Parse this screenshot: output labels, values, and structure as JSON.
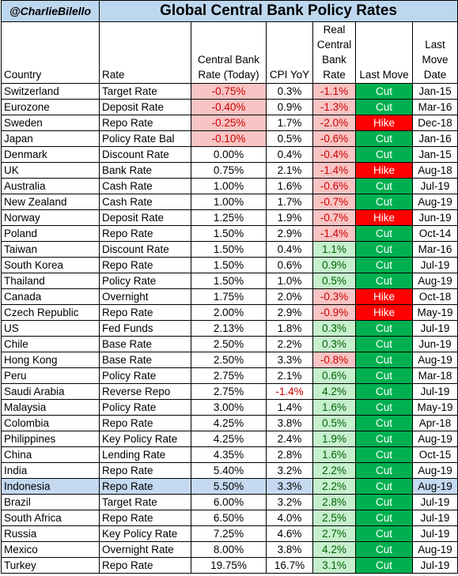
{
  "header": {
    "handle": "@CharlieBilello",
    "title": "Global Central Bank Policy Rates"
  },
  "columns": {
    "country": "Country",
    "rate": "Rate",
    "cb_rate_line1": "Central Bank",
    "cb_rate_line2": "Rate (Today)",
    "cpi": "CPI YoY",
    "real_line1": "Real",
    "real_line2": "Central",
    "real_line3": "Bank",
    "real_line4": "Rate",
    "last_move": "Last Move",
    "date_line1": "Last",
    "date_line2": "Move",
    "date_line3": "Date"
  },
  "rows": [
    {
      "country": "Switzerland",
      "rate": "Target Rate",
      "cb": "-0.75%",
      "cpi": "0.3%",
      "real": "-1.1%",
      "move": "Cut",
      "date": "Jan-15"
    },
    {
      "country": "Eurozone",
      "rate": "Deposit Rate",
      "cb": "-0.40%",
      "cpi": "0.9%",
      "real": "-1.3%",
      "move": "Cut",
      "date": "Mar-16"
    },
    {
      "country": "Sweden",
      "rate": "Repo Rate",
      "cb": "-0.25%",
      "cpi": "1.7%",
      "real": "-2.0%",
      "move": "Hike",
      "date": "Dec-18"
    },
    {
      "country": "Japan",
      "rate": "Policy Rate Bal",
      "cb": "-0.10%",
      "cpi": "0.5%",
      "real": "-0.6%",
      "move": "Cut",
      "date": "Jan-16"
    },
    {
      "country": "Denmark",
      "rate": "Discount Rate",
      "cb": "0.00%",
      "cpi": "0.4%",
      "real": "-0.4%",
      "move": "Cut",
      "date": "Jan-15"
    },
    {
      "country": "UK",
      "rate": "Bank Rate",
      "cb": "0.75%",
      "cpi": "2.1%",
      "real": "-1.4%",
      "move": "Hike",
      "date": "Aug-18"
    },
    {
      "country": "Australia",
      "rate": "Cash Rate",
      "cb": "1.00%",
      "cpi": "1.6%",
      "real": "-0.6%",
      "move": "Cut",
      "date": "Jul-19"
    },
    {
      "country": "New Zealand",
      "rate": "Cash Rate",
      "cb": "1.00%",
      "cpi": "1.7%",
      "real": "-0.7%",
      "move": "Cut",
      "date": "Aug-19"
    },
    {
      "country": "Norway",
      "rate": "Deposit Rate",
      "cb": "1.25%",
      "cpi": "1.9%",
      "real": "-0.7%",
      "move": "Hike",
      "date": "Jun-19"
    },
    {
      "country": "Poland",
      "rate": "Repo Rate",
      "cb": "1.50%",
      "cpi": "2.9%",
      "real": "-1.4%",
      "move": "Cut",
      "date": "Oct-14"
    },
    {
      "country": "Taiwan",
      "rate": "Discount Rate",
      "cb": "1.50%",
      "cpi": "0.4%",
      "real": "1.1%",
      "move": "Cut",
      "date": "Mar-16"
    },
    {
      "country": "South Korea",
      "rate": "Repo Rate",
      "cb": "1.50%",
      "cpi": "0.6%",
      "real": "0.9%",
      "move": "Cut",
      "date": "Jul-19"
    },
    {
      "country": "Thailand",
      "rate": "Policy Rate",
      "cb": "1.50%",
      "cpi": "1.0%",
      "real": "0.5%",
      "move": "Cut",
      "date": "Aug-19"
    },
    {
      "country": "Canada",
      "rate": "Overnight",
      "cb": "1.75%",
      "cpi": "2.0%",
      "real": "-0.3%",
      "move": "Hike",
      "date": "Oct-18"
    },
    {
      "country": "Czech Republic",
      "rate": "Repo Rate",
      "cb": "2.00%",
      "cpi": "2.9%",
      "real": "-0.9%",
      "move": "Hike",
      "date": "May-19"
    },
    {
      "country": "US",
      "rate": "Fed Funds",
      "cb": "2.13%",
      "cpi": "1.8%",
      "real": "0.3%",
      "move": "Cut",
      "date": "Jul-19"
    },
    {
      "country": "Chile",
      "rate": "Base Rate",
      "cb": "2.50%",
      "cpi": "2.2%",
      "real": "0.3%",
      "move": "Cut",
      "date": "Jun-19"
    },
    {
      "country": "Hong Kong",
      "rate": "Base Rate",
      "cb": "2.50%",
      "cpi": "3.3%",
      "real": "-0.8%",
      "move": "Cut",
      "date": "Aug-19"
    },
    {
      "country": "Peru",
      "rate": "Policy Rate",
      "cb": "2.75%",
      "cpi": "2.1%",
      "real": "0.6%",
      "move": "Cut",
      "date": "Mar-18"
    },
    {
      "country": "Saudi Arabia",
      "rate": "Reverse Repo",
      "cb": "2.75%",
      "cpi": "-1.4%",
      "real": "4.2%",
      "move": "Cut",
      "date": "Jul-19"
    },
    {
      "country": "Malaysia",
      "rate": "Policy Rate",
      "cb": "3.00%",
      "cpi": "1.4%",
      "real": "1.6%",
      "move": "Cut",
      "date": "May-19"
    },
    {
      "country": "Colombia",
      "rate": "Repo Rate",
      "cb": "4.25%",
      "cpi": "3.8%",
      "real": "0.5%",
      "move": "Cut",
      "date": "Apr-18"
    },
    {
      "country": "Philippines",
      "rate": "Key Policy Rate",
      "cb": "4.25%",
      "cpi": "2.4%",
      "real": "1.9%",
      "move": "Cut",
      "date": "Aug-19"
    },
    {
      "country": "China",
      "rate": "Lending Rate",
      "cb": "4.35%",
      "cpi": "2.8%",
      "real": "1.6%",
      "move": "Cut",
      "date": "Oct-15"
    },
    {
      "country": "India",
      "rate": "Repo Rate",
      "cb": "5.40%",
      "cpi": "3.2%",
      "real": "2.2%",
      "move": "Cut",
      "date": "Aug-19"
    },
    {
      "country": "Indonesia",
      "rate": "Repo Rate",
      "cb": "5.50%",
      "cpi": "3.3%",
      "real": "2.2%",
      "move": "Cut",
      "date": "Aug-19"
    },
    {
      "country": "Brazil",
      "rate": "Target Rate",
      "cb": "6.00%",
      "cpi": "3.2%",
      "real": "2.8%",
      "move": "Cut",
      "date": "Jul-19"
    },
    {
      "country": "South Africa",
      "rate": "Repo Rate",
      "cb": "6.50%",
      "cpi": "4.0%",
      "real": "2.5%",
      "move": "Cut",
      "date": "Jul-19"
    },
    {
      "country": "Russia",
      "rate": "Key Policy Rate",
      "cb": "7.25%",
      "cpi": "4.6%",
      "real": "2.7%",
      "move": "Cut",
      "date": "Jul-19"
    },
    {
      "country": "Mexico",
      "rate": "Overnight Rate",
      "cb": "8.00%",
      "cpi": "3.8%",
      "real": "4.2%",
      "move": "Cut",
      "date": "Aug-19"
    },
    {
      "country": "Turkey",
      "rate": "Repo Rate",
      "cb": "19.75%",
      "cpi": "16.7%",
      "real": "3.1%",
      "move": "Cut",
      "date": "Jul-19"
    }
  ],
  "highlighted_country": "Indonesia",
  "colors": {
    "title_bg": "#bdd7ee",
    "negative_fill": "#f8c4c4",
    "negative_text": "#cc0000",
    "positive_fill": "#c6efce",
    "positive_text": "#006100",
    "cut_fill": "#00b050",
    "hike_fill": "#ff0000",
    "highlight_row": "#c5d9f1"
  }
}
